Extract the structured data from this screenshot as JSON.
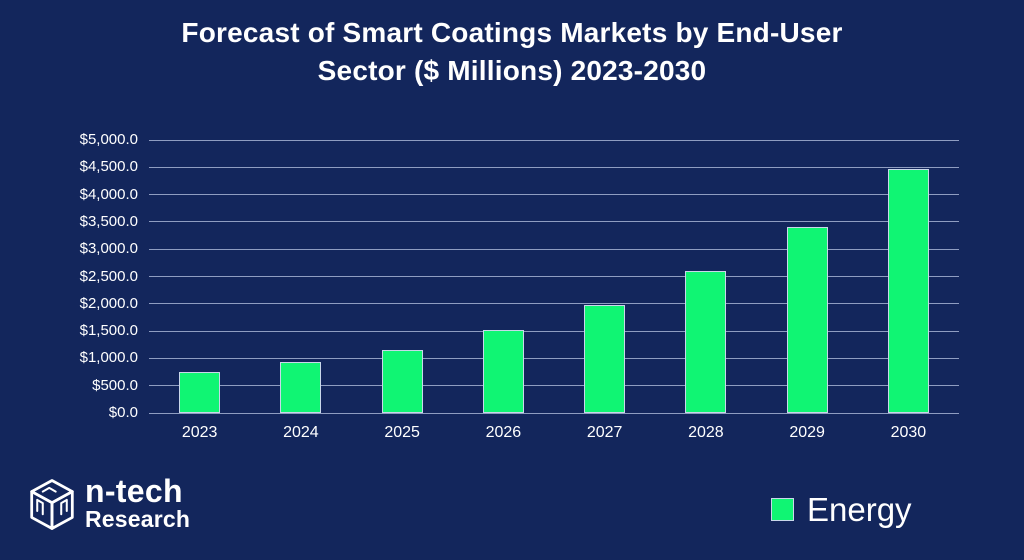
{
  "header": {
    "title_line1": "Forecast of Smart Coatings Markets by End-User",
    "title_line2": "Sector ($ Millions) 2023-2030"
  },
  "legend": {
    "label": "Energy",
    "swatch_color": "#10F573"
  },
  "logo": {
    "line1": "n-tech",
    "line2": "Research"
  },
  "colors": {
    "background": "#13265C",
    "bar_fill": "#10F573",
    "bar_border": "#C9D7EA",
    "gridline": "#AFBCDB",
    "text": "#FFFFFF"
  },
  "chart_data": {
    "type": "bar",
    "title": "Forecast of Smart Coatings Markets by End-User Sector ($ Millions) 2023-2030",
    "categories": [
      "2023",
      "2024",
      "2025",
      "2026",
      "2027",
      "2028",
      "2029",
      "2030"
    ],
    "series": [
      {
        "name": "Energy",
        "values": [
          750,
          940,
          1160,
          1520,
          1980,
          2600,
          3400,
          4470
        ]
      }
    ],
    "xlabel": "",
    "ylabel": "",
    "ylim": [
      0,
      5000
    ],
    "y_tick_step": 500,
    "y_tick_labels": [
      "$0.0",
      "$500.0",
      "$1,000.0",
      "$1,500.0",
      "$2,000.0",
      "$2,500.0",
      "$3,000.0",
      "$3,500.0",
      "$4,000.0",
      "$4,500.0",
      "$5,000.0"
    ],
    "grid": true,
    "legend_position": "bottom-right"
  }
}
